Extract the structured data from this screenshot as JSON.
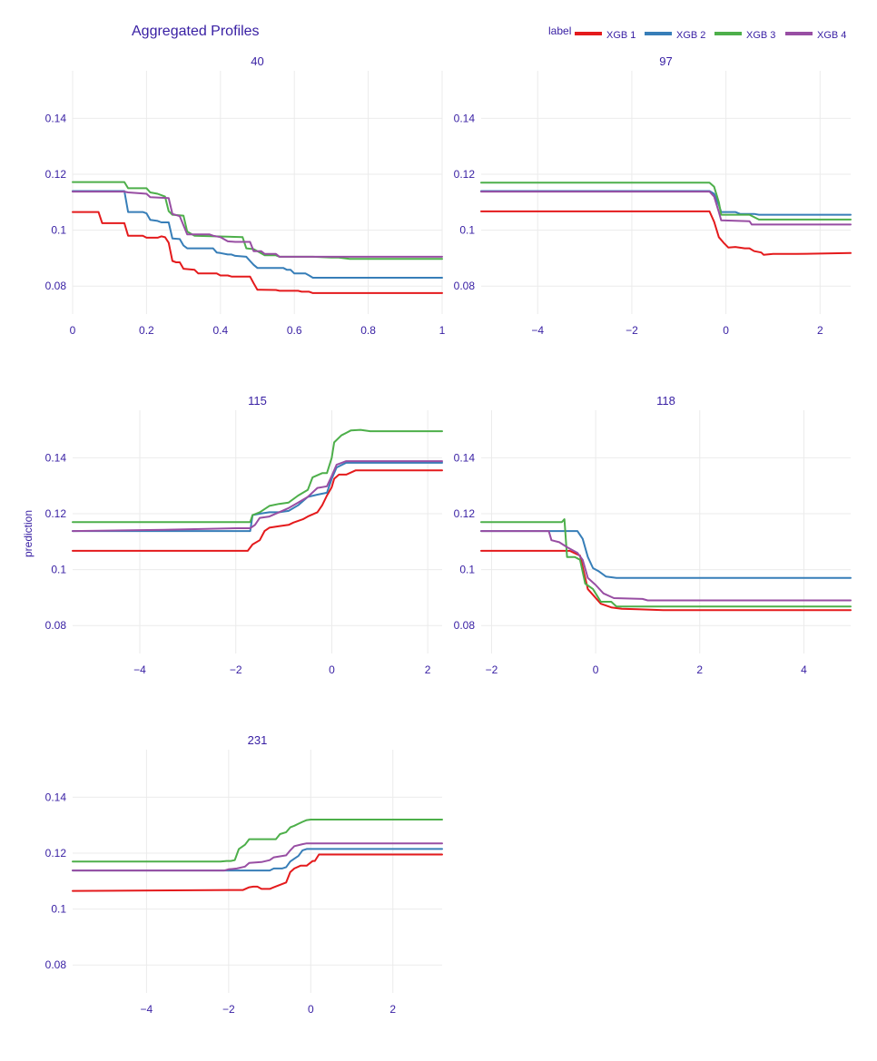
{
  "chart_data": {
    "type": "line",
    "title": "Aggregated Profiles",
    "ylabel": "prediction",
    "legend": {
      "title": "label",
      "placement": "top-right",
      "entries": [
        {
          "name": "XGB 1",
          "color": "#e41a1c"
        },
        {
          "name": "XGB 2",
          "color": "#377eb8"
        },
        {
          "name": "XGB 3",
          "color": "#4daf4a"
        },
        {
          "name": "XGB 4",
          "color": "#984ea3"
        }
      ]
    },
    "ylim": [
      0.07,
      0.157
    ],
    "yticks": [
      0.08,
      0.1,
      0.12,
      0.14
    ],
    "ytick_labels": [
      "0.08",
      "0.1",
      "0.12",
      "0.14"
    ],
    "grid": true,
    "panels": [
      {
        "title": "40",
        "xlim": [
          0,
          1
        ],
        "xticks": [
          0,
          0.2,
          0.4,
          0.6,
          0.8,
          1
        ],
        "xtick_labels": [
          "0",
          "0.2",
          "0.4",
          "0.6",
          "0.8",
          "1"
        ],
        "series": [
          {
            "name": "XGB 1",
            "x": [
              0,
              0.07,
              0.08,
              0.14,
              0.15,
              0.19,
              0.2,
              0.23,
              0.24,
              0.25,
              0.26,
              0.27,
              0.28,
              0.29,
              0.3,
              0.33,
              0.34,
              0.39,
              0.4,
              0.42,
              0.43,
              0.48,
              0.49,
              0.5,
              0.51,
              0.55,
              0.56,
              0.61,
              0.62,
              0.64,
              0.65,
              1
            ],
            "y": [
              0.1065,
              0.1065,
              0.1025,
              0.1025,
              0.098,
              0.098,
              0.0973,
              0.0973,
              0.0978,
              0.0975,
              0.0955,
              0.089,
              0.0885,
              0.0885,
              0.0862,
              0.0858,
              0.0845,
              0.0845,
              0.0838,
              0.0838,
              0.0834,
              0.0834,
              0.081,
              0.0787,
              0.0787,
              0.0786,
              0.0783,
              0.0783,
              0.078,
              0.078,
              0.0775,
              0.0775
            ]
          },
          {
            "name": "XGB 2",
            "x": [
              0,
              0.14,
              0.15,
              0.19,
              0.2,
              0.21,
              0.23,
              0.24,
              0.26,
              0.27,
              0.29,
              0.3,
              0.31,
              0.38,
              0.39,
              0.4,
              0.42,
              0.43,
              0.44,
              0.47,
              0.48,
              0.49,
              0.5,
              0.57,
              0.58,
              0.59,
              0.6,
              0.63,
              0.64,
              0.65,
              1
            ],
            "y": [
              0.114,
              0.114,
              0.1065,
              0.1065,
              0.106,
              0.1037,
              0.1033,
              0.1028,
              0.1028,
              0.097,
              0.0968,
              0.0945,
              0.0935,
              0.0935,
              0.092,
              0.0918,
              0.0913,
              0.0913,
              0.0908,
              0.0905,
              0.089,
              0.0876,
              0.0865,
              0.0865,
              0.0858,
              0.0858,
              0.0845,
              0.0845,
              0.0838,
              0.083,
              0.083
            ]
          },
          {
            "name": "XGB 3",
            "x": [
              0,
              0.14,
              0.15,
              0.2,
              0.21,
              0.23,
              0.25,
              0.26,
              0.27,
              0.3,
              0.31,
              0.33,
              0.46,
              0.47,
              0.49,
              0.5,
              0.52,
              0.55,
              0.56,
              0.6,
              0.65,
              0.7,
              0.72,
              0.75,
              0.8,
              1
            ],
            "y": [
              0.1172,
              0.1172,
              0.115,
              0.115,
              0.1135,
              0.113,
              0.112,
              0.1068,
              0.1055,
              0.1052,
              0.0995,
              0.098,
              0.0975,
              0.0935,
              0.0932,
              0.0925,
              0.091,
              0.091,
              0.0905,
              0.0905,
              0.0905,
              0.0902,
              0.0902,
              0.0897,
              0.0897,
              0.0897
            ]
          },
          {
            "name": "XGB 4",
            "x": [
              0,
              0.14,
              0.15,
              0.18,
              0.2,
              0.21,
              0.26,
              0.27,
              0.29,
              0.31,
              0.37,
              0.38,
              0.4,
              0.42,
              0.44,
              0.48,
              0.49,
              0.51,
              0.52,
              0.55,
              0.56,
              0.6,
              0.65,
              0.7,
              1
            ],
            "y": [
              0.1138,
              0.1138,
              0.1135,
              0.1132,
              0.113,
              0.1118,
              0.1115,
              0.1058,
              0.105,
              0.0985,
              0.0985,
              0.098,
              0.0975,
              0.096,
              0.0958,
              0.0958,
              0.0925,
              0.0925,
              0.0915,
              0.0915,
              0.0905,
              0.0905,
              0.0905,
              0.0905,
              0.0905
            ]
          }
        ]
      },
      {
        "title": "97",
        "xlim": [
          -5.2,
          2.65
        ],
        "xticks": [
          -4,
          -2,
          0,
          2
        ],
        "xtick_labels": [
          "−4",
          "−2",
          "0",
          "2"
        ],
        "series": [
          {
            "name": "XGB 1",
            "x": [
              -5.2,
              -0.35,
              -0.25,
              -0.15,
              -0.05,
              0.05,
              0.2,
              0.4,
              0.5,
              0.6,
              0.75,
              0.8,
              1.0,
              1.5,
              2.65
            ],
            "y": [
              0.1067,
              0.1067,
              0.103,
              0.0975,
              0.0955,
              0.0938,
              0.094,
              0.0935,
              0.0935,
              0.0925,
              0.092,
              0.0912,
              0.0915,
              0.0915,
              0.0918
            ]
          },
          {
            "name": "XGB 2",
            "x": [
              -5.2,
              -0.35,
              -0.25,
              -0.15,
              -0.1,
              0.2,
              0.3,
              0.6,
              0.7,
              2.65
            ],
            "y": [
              0.114,
              0.114,
              0.113,
              0.109,
              0.1065,
              0.1065,
              0.1058,
              0.1058,
              0.1055,
              0.1055
            ]
          },
          {
            "name": "XGB 3",
            "x": [
              -5.2,
              -0.35,
              -0.25,
              -0.15,
              -0.1,
              0.5,
              0.7,
              2.65
            ],
            "y": [
              0.117,
              0.117,
              0.1155,
              0.11,
              0.1055,
              0.1055,
              0.1038,
              0.1038
            ]
          },
          {
            "name": "XGB 4",
            "x": [
              -5.2,
              -0.35,
              -0.25,
              -0.15,
              -0.1,
              0.5,
              0.55,
              2.65
            ],
            "y": [
              0.1138,
              0.1138,
              0.112,
              0.1065,
              0.1035,
              0.1032,
              0.102,
              0.102
            ]
          }
        ]
      },
      {
        "title": "115",
        "xlim": [
          -5.4,
          2.3
        ],
        "xticks": [
          -4,
          -2,
          0,
          2
        ],
        "xtick_labels": [
          "−4",
          "−2",
          "0",
          "2"
        ],
        "series": [
          {
            "name": "XGB 1",
            "x": [
              -5.4,
              -1.75,
              -1.65,
              -1.5,
              -1.4,
              -1.3,
              -1.1,
              -0.9,
              -0.8,
              -0.6,
              -0.5,
              -0.3,
              -0.2,
              -0.1,
              0.0,
              0.05,
              0.15,
              0.3,
              0.5,
              2.3
            ],
            "y": [
              0.1067,
              0.1067,
              0.109,
              0.1105,
              0.1138,
              0.115,
              0.1155,
              0.116,
              0.1168,
              0.118,
              0.119,
              0.1205,
              0.123,
              0.1265,
              0.1295,
              0.1325,
              0.134,
              0.134,
              0.1355,
              0.1355
            ]
          },
          {
            "name": "XGB 2",
            "x": [
              -5.4,
              -1.7,
              -1.65,
              -1.5,
              -1.3,
              -1.1,
              -0.9,
              -0.7,
              -0.5,
              -0.3,
              -0.1,
              0.0,
              0.1,
              0.3,
              2.3
            ],
            "y": [
              0.1138,
              0.1138,
              0.1195,
              0.12,
              0.1205,
              0.1205,
              0.121,
              0.123,
              0.126,
              0.1268,
              0.1275,
              0.1325,
              0.1365,
              0.1382,
              0.1382
            ]
          },
          {
            "name": "XGB 3",
            "x": [
              -5.4,
              -1.7,
              -1.65,
              -1.5,
              -1.3,
              -1.1,
              -0.9,
              -0.7,
              -0.5,
              -0.4,
              -0.2,
              -0.1,
              0.0,
              0.05,
              0.2,
              0.4,
              0.6,
              0.8,
              2.3
            ],
            "y": [
              0.117,
              0.117,
              0.1195,
              0.1205,
              0.1228,
              0.1235,
              0.124,
              0.1265,
              0.1285,
              0.133,
              0.1345,
              0.1345,
              0.14,
              0.1455,
              0.148,
              0.1498,
              0.15,
              0.1495,
              0.1495
            ]
          },
          {
            "name": "XGB 4",
            "x": [
              -5.4,
              -3.5,
              -2.0,
              -1.7,
              -1.6,
              -1.5,
              -1.3,
              -1.1,
              -0.9,
              -0.7,
              -0.5,
              -0.3,
              -0.1,
              0.0,
              0.1,
              0.3,
              2.3
            ],
            "y": [
              0.1138,
              0.1142,
              0.1148,
              0.1148,
              0.116,
              0.1185,
              0.119,
              0.1205,
              0.122,
              0.124,
              0.126,
              0.1292,
              0.1298,
              0.1335,
              0.1375,
              0.1388,
              0.1388
            ]
          }
        ]
      },
      {
        "title": "118",
        "xlim": [
          -2.2,
          4.9
        ],
        "xticks": [
          -2,
          0,
          2,
          4
        ],
        "xtick_labels": [
          "−2",
          "0",
          "2",
          "4"
        ],
        "series": [
          {
            "name": "XGB 1",
            "x": [
              -2.2,
              -0.5,
              -0.3,
              -0.15,
              0.1,
              0.3,
              0.5,
              0.8,
              1.3,
              4.9
            ],
            "y": [
              0.1067,
              0.1067,
              0.105,
              0.093,
              0.0878,
              0.0865,
              0.086,
              0.0858,
              0.0855,
              0.0855
            ]
          },
          {
            "name": "XGB 2",
            "x": [
              -2.2,
              -0.35,
              -0.25,
              -0.15,
              -0.05,
              0.05,
              0.2,
              0.4,
              4.9
            ],
            "y": [
              0.1138,
              0.1138,
              0.111,
              0.1045,
              0.1005,
              0.0995,
              0.0975,
              0.097,
              0.097
            ]
          },
          {
            "name": "XGB 3",
            "x": [
              -2.2,
              -0.65,
              -0.6,
              -0.55,
              -0.4,
              -0.3,
              -0.2,
              -0.05,
              0.0,
              0.1,
              0.3,
              0.4,
              4.9
            ],
            "y": [
              0.117,
              0.117,
              0.118,
              0.1045,
              0.1045,
              0.1035,
              0.095,
              0.093,
              0.0915,
              0.0885,
              0.0885,
              0.0868,
              0.0868
            ]
          },
          {
            "name": "XGB 4",
            "x": [
              -2.2,
              -0.9,
              -0.85,
              -0.7,
              -0.55,
              -0.35,
              -0.25,
              -0.15,
              0.0,
              0.15,
              0.35,
              0.9,
              1.0,
              4.9
            ],
            "y": [
              0.1138,
              0.1138,
              0.1105,
              0.1098,
              0.108,
              0.106,
              0.1035,
              0.097,
              0.0945,
              0.0915,
              0.0898,
              0.0895,
              0.089,
              0.089
            ]
          }
        ]
      },
      {
        "title": "231",
        "xlim": [
          -5.8,
          3.2
        ],
        "xticks": [
          -4,
          -2,
          0,
          2
        ],
        "xtick_labels": [
          "−4",
          "−2",
          "0",
          "2"
        ],
        "series": [
          {
            "name": "XGB 1",
            "x": [
              -5.8,
              -2.0,
              -1.65,
              -1.5,
              -1.4,
              -1.3,
              -1.2,
              -1.0,
              -0.9,
              -0.6,
              -0.5,
              -0.4,
              -0.25,
              -0.1,
              0.05,
              0.1,
              0.2,
              3.2
            ],
            "y": [
              0.1065,
              0.1068,
              0.1068,
              0.1078,
              0.108,
              0.108,
              0.1072,
              0.1072,
              0.1078,
              0.1095,
              0.1132,
              0.1145,
              0.1155,
              0.1155,
              0.1172,
              0.1172,
              0.1195,
              0.1195
            ]
          },
          {
            "name": "XGB 2",
            "x": [
              -5.8,
              -2.0,
              -1.6,
              -1.0,
              -0.9,
              -0.7,
              -0.6,
              -0.5,
              -0.4,
              -0.3,
              -0.2,
              -0.1,
              0.0,
              0.1,
              3.2
            ],
            "y": [
              0.1138,
              0.1138,
              0.1138,
              0.1138,
              0.1145,
              0.1145,
              0.115,
              0.117,
              0.118,
              0.119,
              0.121,
              0.1215,
              0.1215,
              0.1215,
              0.1215
            ]
          },
          {
            "name": "XGB 3",
            "x": [
              -5.8,
              -2.2,
              -2.05,
              -1.95,
              -1.85,
              -1.75,
              -1.6,
              -1.5,
              -0.85,
              -0.75,
              -0.6,
              -0.5,
              -0.4,
              -0.3,
              -0.2,
              -0.1,
              0.0,
              0.3,
              3.2
            ],
            "y": [
              0.117,
              0.117,
              0.1172,
              0.1172,
              0.1175,
              0.1215,
              0.123,
              0.125,
              0.125,
              0.1268,
              0.1275,
              0.1292,
              0.1298,
              0.1305,
              0.1312,
              0.1318,
              0.132,
              0.132,
              0.132
            ]
          },
          {
            "name": "XGB 4",
            "x": [
              -5.8,
              -2.1,
              -2.0,
              -1.8,
              -1.6,
              -1.5,
              -1.2,
              -1.0,
              -0.9,
              -0.6,
              -0.5,
              -0.4,
              -0.2,
              -0.1,
              0.0,
              0.2,
              3.2
            ],
            "y": [
              0.1138,
              0.1138,
              0.1142,
              0.1145,
              0.1152,
              0.1165,
              0.1168,
              0.1175,
              0.1185,
              0.1192,
              0.121,
              0.1225,
              0.1232,
              0.1235,
              0.1235,
              0.1235,
              0.1235
            ]
          }
        ]
      }
    ]
  }
}
